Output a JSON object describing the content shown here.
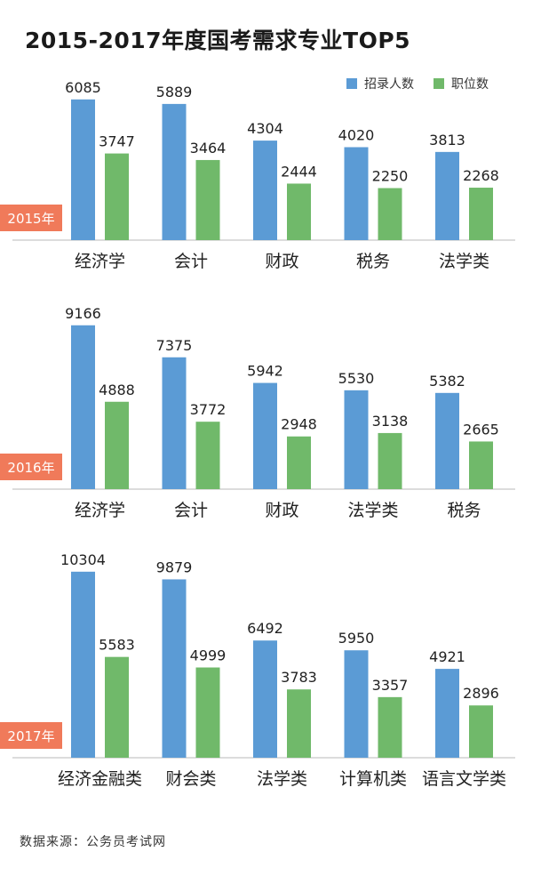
{
  "title": "2015-2017年度国考需求专业TOP5",
  "legend": {
    "series1": "招录人数",
    "series2": "职位数"
  },
  "colors": {
    "series1": "#5b9bd5",
    "series2": "#70b96a",
    "year_tag": "#f07a5a"
  },
  "source": {
    "label": "数据来源：",
    "value": "公务员考试网"
  },
  "chart_data": [
    {
      "type": "bar",
      "year_label": "2015年",
      "categories": [
        "经济学",
        "会计",
        "财政",
        "税务",
        "法学类"
      ],
      "series": [
        {
          "name": "招录人数",
          "values": [
            6085,
            5889,
            4304,
            4020,
            3813
          ]
        },
        {
          "name": "职位数",
          "values": [
            3747,
            3464,
            2444,
            2250,
            2268
          ]
        }
      ]
    },
    {
      "type": "bar",
      "year_label": "2016年",
      "categories": [
        "经济学",
        "会计",
        "财政",
        "法学类",
        "税务"
      ],
      "series": [
        {
          "name": "招录人数",
          "values": [
            9166,
            7375,
            5942,
            5530,
            5382
          ]
        },
        {
          "name": "职位数",
          "values": [
            4888,
            3772,
            2948,
            3138,
            2665
          ]
        }
      ]
    },
    {
      "type": "bar",
      "year_label": "2017年",
      "categories": [
        "经济金融类",
        "财会类",
        "法学类",
        "计算机类",
        "语言文学类"
      ],
      "series": [
        {
          "name": "招录人数",
          "values": [
            10304,
            9879,
            6492,
            5950,
            4921
          ]
        },
        {
          "name": "职位数",
          "values": [
            5583,
            4999,
            3783,
            3357,
            2896
          ]
        }
      ]
    }
  ]
}
